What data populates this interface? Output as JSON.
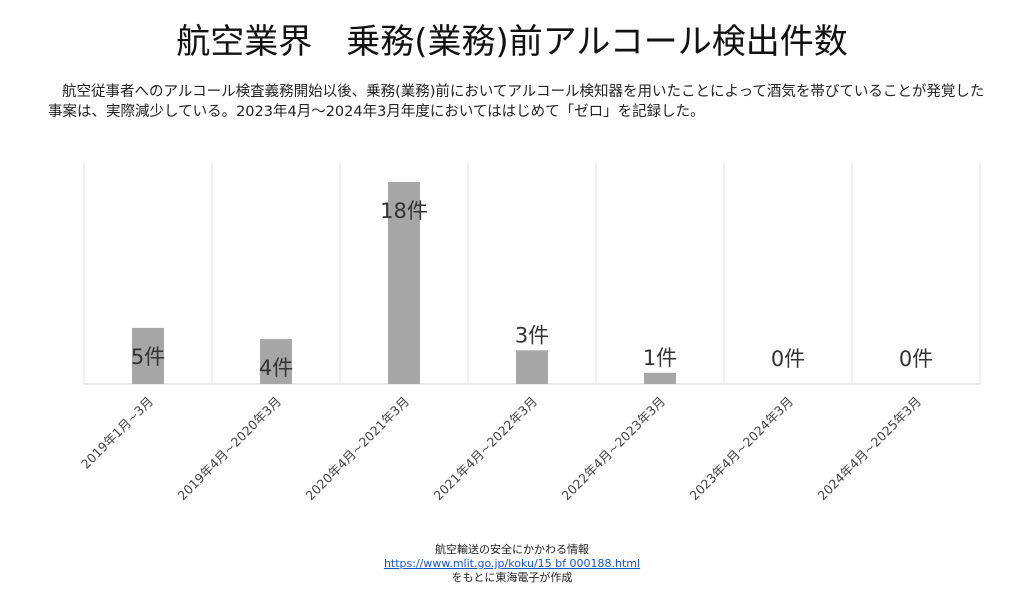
{
  "header": {
    "title": "航空業界　乗務(業務)前アルコール検出件数",
    "description": "航空従事者へのアルコール検査義務開始以後、乗務(業務)前においてアルコール検知器を用いたことによって酒気を帯びていることが発覚した事案は、実際減少している。2023年4月～2024年3月年度においてははじめて「ゼロ」を記録した。"
  },
  "chart_data": {
    "type": "bar",
    "title": "航空業界　乗務(業務)前アルコール検出件数",
    "categories": [
      "2019年1月~3月",
      "2019年4月~2020年3月",
      "2020年4月~2021年3月",
      "2021年4月~2022年3月",
      "2022年4月~2023年3月",
      "2023年4月~2024年3月",
      "2024年4月~2025年3月"
    ],
    "values": [
      5,
      4,
      18,
      3,
      1,
      0,
      0
    ],
    "value_labels": [
      "5件",
      "4件",
      "18件",
      "3件",
      "1件",
      "0件",
      "0件"
    ],
    "ylim": [
      0,
      18
    ],
    "xlabel": "",
    "ylabel": "",
    "grid": "vertical",
    "bar_color": "#a6a6a6"
  },
  "source": {
    "line1": "航空輸送の安全にかかわる情報",
    "url": "https://www.mlit.go.jp/koku/15 bf 000188.html",
    "line3": "をもとに東海電子が作成"
  }
}
